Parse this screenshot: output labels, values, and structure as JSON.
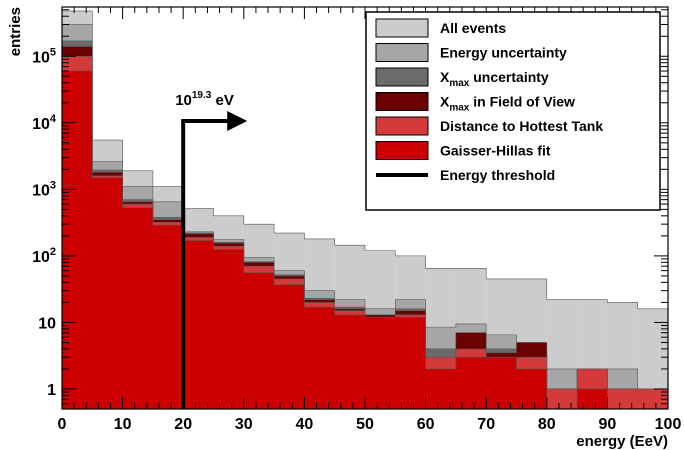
{
  "chart_data": {
    "type": "bar",
    "subtype": "stacked-histogram",
    "xlabel": "energy (EeV)",
    "ylabel": "entries",
    "xlim": [
      0,
      100
    ],
    "ylim": [
      0.5,
      550000
    ],
    "yscale": "log",
    "grid": false,
    "legend_position": "top-right",
    "bin_edges": [
      0,
      5,
      10,
      15,
      20,
      25,
      30,
      35,
      40,
      45,
      50,
      55,
      60,
      65,
      70,
      75,
      80,
      85,
      90,
      95,
      100
    ],
    "x_ticks": [
      0,
      10,
      20,
      30,
      40,
      50,
      60,
      70,
      80,
      90,
      100
    ],
    "x_tick_labels": [
      "0",
      "10",
      "20",
      "30",
      "40",
      "50",
      "60",
      "70",
      "80",
      "90",
      "100"
    ],
    "y_ticks": [
      1,
      10,
      100,
      1000,
      10000,
      100000
    ],
    "y_tick_labels": [
      {
        "base": "1",
        "exp": ""
      },
      {
        "base": "10",
        "exp": ""
      },
      {
        "base": "10",
        "exp": "2"
      },
      {
        "base": "10",
        "exp": "3"
      },
      {
        "base": "10",
        "exp": "4"
      },
      {
        "base": "10",
        "exp": "5"
      }
    ],
    "series": [
      {
        "name": "All events",
        "color": "#cccccc",
        "values": [
          480000,
          5500,
          1900,
          1100,
          520,
          400,
          300,
          220,
          180,
          145,
          120,
          100,
          65,
          65,
          45,
          45,
          22,
          22,
          20,
          16
        ]
      },
      {
        "name": "Energy uncertainty",
        "color": "#a6a6a6",
        "values": [
          300000,
          2600,
          1100,
          650,
          230,
          175,
          95,
          60,
          30,
          22,
          16,
          22,
          8.5,
          9.5,
          6.5,
          3.5,
          2,
          2,
          2,
          1
        ]
      },
      {
        "name": "Xmax uncertainty",
        "color": "#6b6b6b",
        "values": [
          170000,
          1950,
          700,
          380,
          220,
          160,
          82,
          52,
          23,
          17,
          13,
          16,
          4,
          5.5,
          4,
          4,
          1,
          2,
          1,
          1
        ]
      },
      {
        "name": "Xmax in Field of View",
        "color": "#6b0000",
        "values": [
          140000,
          1800,
          650,
          350,
          215,
          155,
          80,
          50,
          22,
          16,
          13,
          15,
          3,
          7,
          3.5,
          5,
          1,
          2,
          1,
          1
        ]
      },
      {
        "name": "Distance to Hottest Tank",
        "color": "#d53a3a",
        "values": [
          100000,
          1600,
          600,
          320,
          190,
          140,
          70,
          45,
          20,
          15,
          12,
          13,
          3,
          4,
          3,
          3,
          1,
          2,
          1,
          1
        ]
      },
      {
        "name": "Gaisser-Hillas fit",
        "color": "#cc0000",
        "values": [
          60000,
          1500,
          530,
          290,
          170,
          125,
          56,
          37,
          17,
          13,
          12,
          12,
          2,
          3,
          3,
          2,
          0,
          1,
          0,
          0
        ]
      }
    ],
    "threshold": {
      "name": "Energy threshold",
      "x": 20,
      "color": "#000000",
      "label_base": "10",
      "label_exp": "19.3",
      "label_unit": " eV"
    }
  }
}
